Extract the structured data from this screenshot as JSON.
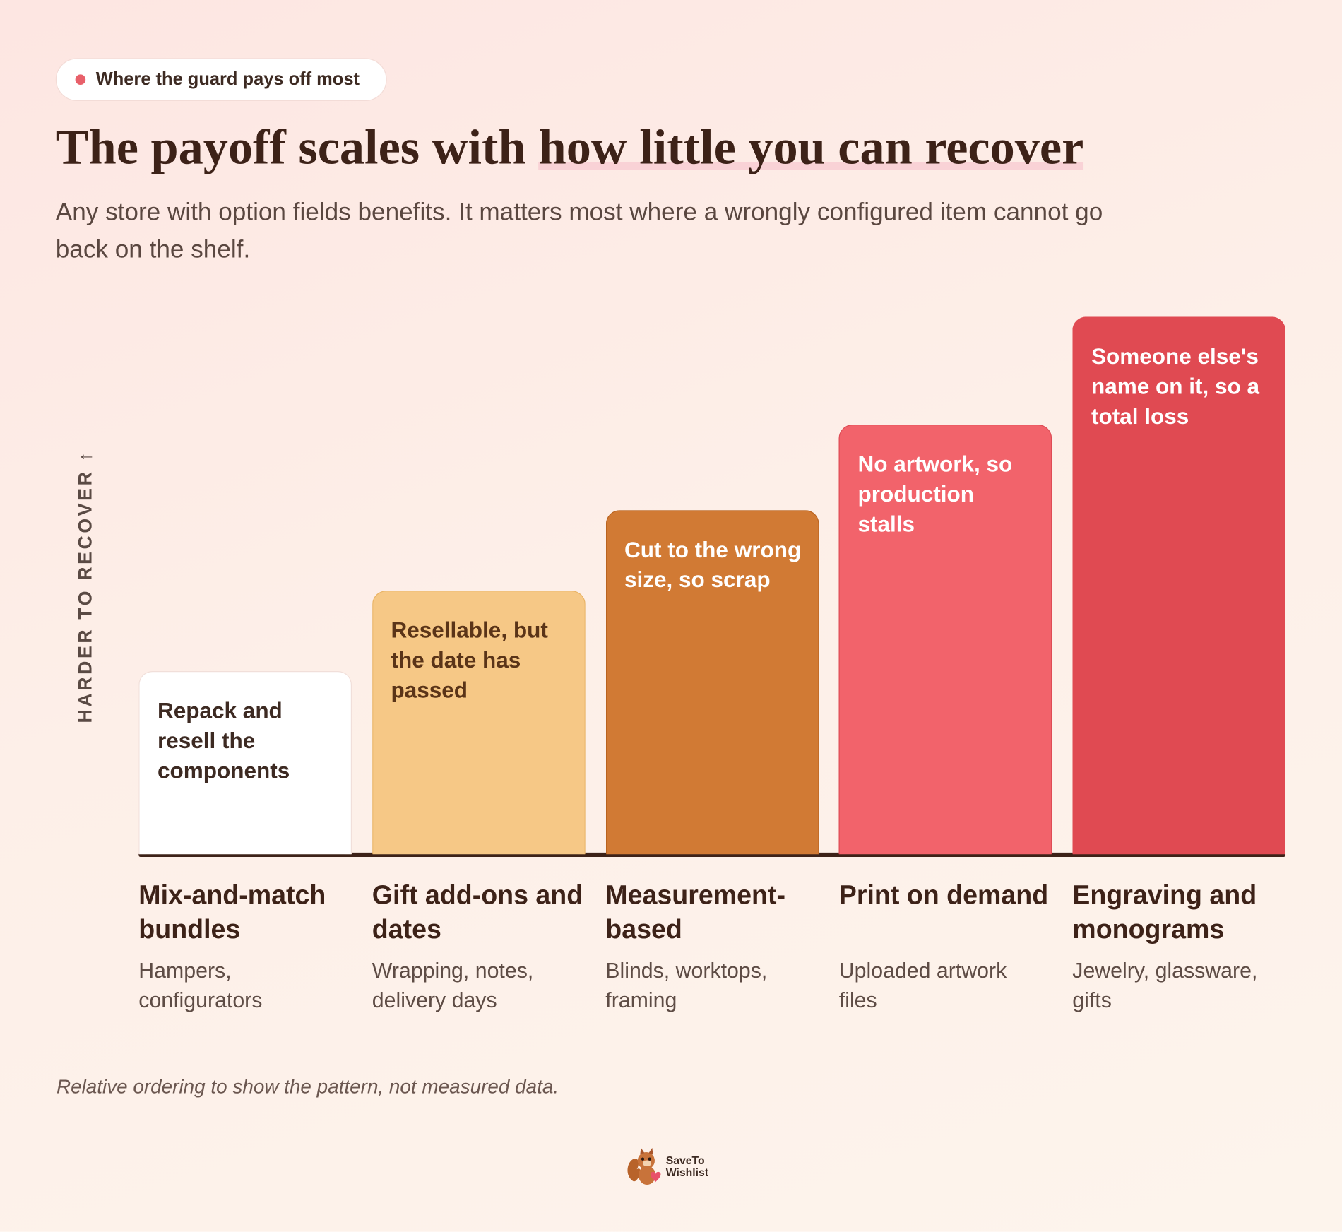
{
  "badge": "Where the guard pays off most",
  "title": "The payoff scales with",
  "title_highlight": "how little you can recover",
  "subtitle": "Any store with option fields benefits. It matters most where a wrongly configured item cannot go back on the shelf.",
  "footnote": "Relative ordering to show the pattern, not measured data.",
  "brand": {
    "line1": "SaveTo",
    "line2": "Wishlist"
  },
  "chart_data": {
    "type": "bar",
    "y_label": "HARDER TO RECOVER ↑",
    "categories": [
      "Mix-and-match bundles",
      "Gift add-ons and dates",
      "Measurement-based",
      "Print on demand",
      "Engraving and monograms"
    ],
    "descriptions": [
      "Hampers, configurators",
      "Wrapping, notes, delivery days",
      "Blinds, worktops, framing",
      "Uploaded artwork files",
      "Jewelry, glassware, gifts"
    ],
    "bar_labels": [
      "Repack and resell the components",
      "Resellable, but the date has passed",
      "Cut to the wrong size, so scrap",
      "No artwork, so production stalls",
      "Someone else's name on it, so a total loss"
    ],
    "values": [
      34,
      49,
      64,
      80,
      100
    ],
    "colors": [
      "#ffffff",
      "#f6c886",
      "#d17a34",
      "#f2636b",
      "#e04a52"
    ],
    "border_colors": [
      "#f1dfda",
      "#e9b466",
      "#b9631f",
      "#de4c55",
      "#e04a52"
    ],
    "text_colors": [
      "#3d2a22",
      "#5a3418",
      "#ffffff",
      "#ffffff",
      "#ffffff"
    ],
    "ylim": [
      0,
      100
    ]
  }
}
